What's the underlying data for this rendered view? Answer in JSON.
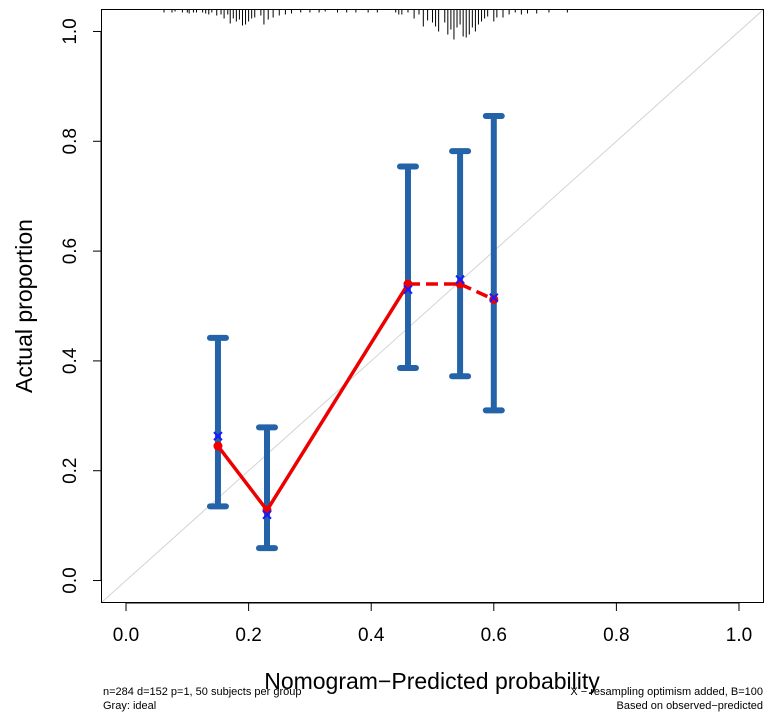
{
  "chart_data": {
    "type": "scatter",
    "title": "",
    "xlabel": "Nomogram−Predicted probability",
    "ylabel": "Actual proportion",
    "xlim": [
      -0.04,
      1.04
    ],
    "ylim": [
      -0.04,
      1.04
    ],
    "x_ticks": [
      "0.0",
      "0.2",
      "0.4",
      "0.6",
      "0.8",
      "1.0"
    ],
    "y_ticks": [
      "0.0",
      "0.2",
      "0.4",
      "0.6",
      "0.8",
      "1.0"
    ],
    "grid": false,
    "ideal_line": {
      "color": "#d3d3d3",
      "from": [
        0,
        0
      ],
      "to": [
        1,
        1
      ]
    },
    "error_bars": {
      "color": "#2563a8",
      "points": [
        {
          "x": 0.15,
          "low": 0.135,
          "high": 0.442
        },
        {
          "x": 0.23,
          "low": 0.059,
          "high": 0.279
        },
        {
          "x": 0.46,
          "low": 0.387,
          "high": 0.754
        },
        {
          "x": 0.545,
          "low": 0.372,
          "high": 0.782
        },
        {
          "x": 0.6,
          "low": 0.31,
          "high": 0.846
        }
      ]
    },
    "observed": {
      "color": "#ee0000",
      "x": [
        0.15,
        0.23,
        0.46,
        0.545,
        0.6
      ],
      "y": [
        0.245,
        0.128,
        0.54,
        0.54,
        0.512
      ]
    },
    "bias_corrected": {
      "color": "#1a1aff",
      "x": [
        0.15,
        0.23,
        0.46,
        0.545,
        0.6
      ],
      "y": [
        0.263,
        0.12,
        0.53,
        0.548,
        0.515
      ]
    },
    "rug": {
      "x": [
        0.062,
        0.075,
        0.08,
        0.092,
        0.1,
        0.103,
        0.11,
        0.115,
        0.125,
        0.13,
        0.135,
        0.14,
        0.148,
        0.155,
        0.16,
        0.166,
        0.17,
        0.175,
        0.18,
        0.185,
        0.19,
        0.195,
        0.2,
        0.205,
        0.21,
        0.22,
        0.225,
        0.232,
        0.24,
        0.25,
        0.26,
        0.27,
        0.285,
        0.3,
        0.315,
        0.325,
        0.345,
        0.36,
        0.375,
        0.395,
        0.41,
        0.44,
        0.445,
        0.45,
        0.46,
        0.47,
        0.478,
        0.485,
        0.492,
        0.5,
        0.505,
        0.51,
        0.52,
        0.525,
        0.53,
        0.535,
        0.54,
        0.545,
        0.55,
        0.555,
        0.56,
        0.565,
        0.57,
        0.575,
        0.58,
        0.585,
        0.59,
        0.6,
        0.605,
        0.615,
        0.625,
        0.635,
        0.645,
        0.655,
        0.67,
        0.69,
        0.72
      ],
      "h": [
        3,
        3,
        2,
        3,
        3,
        4,
        3,
        3,
        3,
        4,
        5,
        3,
        6,
        5,
        9,
        5,
        14,
        9,
        12,
        10,
        16,
        15,
        12,
        9,
        8,
        6,
        15,
        10,
        8,
        6,
        5,
        4,
        3,
        3,
        3,
        2,
        3,
        3,
        3,
        3,
        3,
        3,
        5,
        5,
        3,
        9,
        5,
        17,
        11,
        13,
        17,
        22,
        13,
        25,
        20,
        30,
        18,
        15,
        27,
        28,
        25,
        18,
        22,
        15,
        12,
        9,
        7,
        12,
        8,
        8,
        5,
        3,
        5,
        4,
        4,
        3,
        3
      ]
    }
  },
  "footnotes": {
    "left_line1": "n=284 d=152 p=1, 50 subjects per group",
    "left_line2": "Gray: ideal",
    "right_line1": "X − resampling optimism added, B=100",
    "right_line2": "Based on observed−predicted"
  }
}
